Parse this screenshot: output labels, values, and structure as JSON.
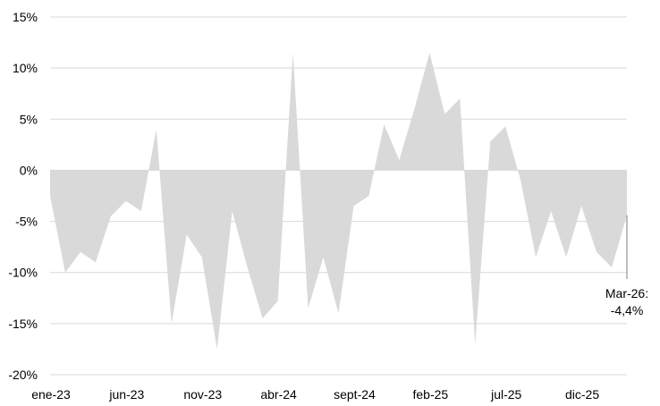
{
  "chart_data": {
    "type": "area",
    "fill_color": "#d9d9d9",
    "grid": true,
    "ylim": [
      -20,
      15
    ],
    "y_ticks": [
      {
        "value": 15,
        "label": "15%"
      },
      {
        "value": 10,
        "label": "10%"
      },
      {
        "value": 5,
        "label": "5%"
      },
      {
        "value": 0,
        "label": "0%"
      },
      {
        "value": -5,
        "label": "-5%"
      },
      {
        "value": -10,
        "label": "-10%"
      },
      {
        "value": -15,
        "label": "-15%"
      },
      {
        "value": -20,
        "label": "-20%"
      }
    ],
    "x_ticks": [
      {
        "index": 0,
        "label": "ene-23"
      },
      {
        "index": 5,
        "label": "jun-23"
      },
      {
        "index": 10,
        "label": "nov-23"
      },
      {
        "index": 15,
        "label": "abr-24"
      },
      {
        "index": 20,
        "label": "sept-24"
      },
      {
        "index": 25,
        "label": "feb-25"
      },
      {
        "index": 30,
        "label": "jul-25"
      },
      {
        "index": 35,
        "label": "dic-25"
      }
    ],
    "x_index_max": 38,
    "values": [
      -2.5,
      -10.0,
      -8.0,
      -9.0,
      -4.5,
      -3.0,
      -4.0,
      4.0,
      -15.0,
      -6.3,
      -8.5,
      -17.5,
      -4.0,
      -9.5,
      -14.5,
      -12.8,
      11.5,
      -13.5,
      -8.5,
      -14.0,
      -3.5,
      -2.5,
      4.5,
      1.0,
      6.0,
      11.5,
      5.5,
      7.0,
      -17.0,
      2.8,
      4.3,
      -1.0,
      -8.5,
      -4.0,
      -8.5,
      -3.5,
      -8.0,
      -9.5,
      -4.4
    ],
    "annotation": {
      "line1": "Mar-26:",
      "line2": "-4,4%"
    }
  }
}
